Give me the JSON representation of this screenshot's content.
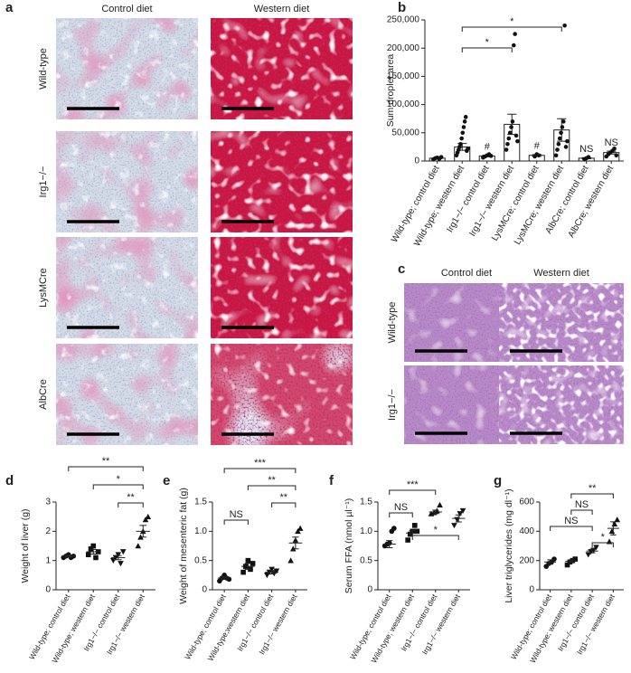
{
  "panel_a": {
    "label": "a",
    "columns": [
      "Control diet",
      "Western diet"
    ],
    "rows": [
      "Wild-type",
      "Irg1−/−",
      "LysMCre",
      "AlbCre"
    ]
  },
  "panel_c": {
    "label": "c",
    "columns": [
      "Control diet",
      "Western diet"
    ],
    "rows": [
      "Wild-type",
      "Irg1−/−"
    ]
  },
  "chart_data": [
    {
      "type": "bar",
      "label": "b",
      "y_label": "Sum droplet area",
      "categories": [
        "Wild-type; control diet",
        "Wild-type; western diet",
        "Irg1−/− control diet",
        "Irg1−/− western diet",
        "LysMCre; control diet",
        "LysMCre; western diet",
        "AlbCre; control diet",
        "AlbCre; western diet"
      ],
      "values": [
        5000,
        25000,
        9000,
        65000,
        10000,
        55000,
        5000,
        15000
      ],
      "errors": [
        1000,
        6000,
        1500,
        18000,
        1500,
        20000,
        1000,
        2500
      ],
      "points": [
        [
          3000,
          5000,
          6000,
          4000,
          7000
        ],
        [
          10000,
          15000,
          20000,
          25000,
          30000,
          40000,
          50000,
          60000,
          70000,
          78000,
          18000,
          22000
        ],
        [
          6000,
          8000,
          10000,
          12000,
          9000
        ],
        [
          20000,
          30000,
          40000,
          50000,
          60000,
          70000,
          205000,
          225000,
          45000,
          35000
        ],
        [
          8000,
          12000,
          10000
        ],
        [
          10000,
          20000,
          30000,
          40000,
          50000,
          60000,
          70000,
          240000,
          25000,
          35000
        ],
        [
          3000,
          5000,
          7000
        ],
        [
          8000,
          12000,
          15000,
          18000,
          22000,
          10000
        ]
      ],
      "color": "#ffffff",
      "ylim": [
        0,
        250000
      ],
      "yticks": [
        0,
        {
          "value": 50000,
          "label": "50,000"
        },
        {
          "value": 100000,
          "label": "100,000"
        },
        {
          "value": 150000,
          "label": "150,000"
        },
        {
          "value": 200000,
          "label": "200,000"
        },
        {
          "value": 250000,
          "label": "250,000"
        }
      ],
      "brackets": [
        {
          "from": 1,
          "to": 3,
          "label": "*"
        },
        {
          "from": 1,
          "to": 5,
          "label": "*"
        }
      ],
      "annotations": [
        {
          "category": 2,
          "label": "#"
        },
        {
          "category": 4,
          "label": "#"
        },
        {
          "category": 6,
          "label": "NS"
        },
        {
          "category": 7,
          "label": "NS"
        }
      ]
    },
    {
      "type": "dotplot",
      "label": "d",
      "y_label": "Weight of liver (g)",
      "categories": [
        "Wild-type; control diet",
        "Wild-type; western diet",
        "Irg1−/− control diet",
        "Irg1−/− western diet"
      ],
      "values": [
        1.15,
        1.3,
        1.1,
        2.0
      ],
      "errors": [
        0.03,
        0.08,
        0.07,
        0.2
      ],
      "points": [
        [
          1.1,
          1.15,
          1.2,
          1.1,
          1.15
        ],
        [
          1.2,
          1.4,
          1.5,
          1.1,
          1.3
        ],
        [
          1.0,
          1.1,
          1.2,
          0.9,
          1.3
        ],
        [
          1.5,
          1.8,
          2.0,
          2.4,
          2.5
        ]
      ],
      "markers": [
        "circle",
        "square",
        "triangle-down",
        "triangle"
      ],
      "ylim": [
        0,
        3
      ],
      "yticks": [
        0,
        1,
        2,
        3
      ],
      "brackets": [
        {
          "from": 2,
          "to": 3,
          "label": "**"
        },
        {
          "from": 1,
          "to": 3,
          "label": "*"
        },
        {
          "from": 0,
          "to": 3,
          "label": "**"
        }
      ]
    },
    {
      "type": "dotplot",
      "label": "e",
      "y_label": "Weight of mesenteric fat (g)",
      "categories": [
        "Wild-type; control diet",
        "Wild-type;western diet",
        "Irg1−/− control diet",
        "Irg1−/− western diet"
      ],
      "values": [
        0.2,
        0.4,
        0.3,
        0.8
      ],
      "errors": [
        0.02,
        0.05,
        0.03,
        0.1
      ],
      "points": [
        [
          0.15,
          0.2,
          0.25,
          0.2,
          0.18
        ],
        [
          0.3,
          0.4,
          0.5,
          0.35,
          0.45
        ],
        [
          0.25,
          0.3,
          0.35,
          0.28,
          0.32
        ],
        [
          0.5,
          0.7,
          0.85,
          1.0,
          1.05
        ]
      ],
      "markers": [
        "circle",
        "square",
        "triangle-down",
        "triangle"
      ],
      "ylim": [
        0,
        1.5
      ],
      "yticks": [
        0,
        0.5,
        {
          "value": 1,
          "label": "1.0"
        },
        1.5
      ],
      "brackets": [
        {
          "from": 0,
          "to": 1,
          "label": "NS"
        },
        {
          "from": 2,
          "to": 3,
          "label": "**"
        },
        {
          "from": 1,
          "to": 3,
          "label": "**"
        },
        {
          "from": 0,
          "to": 3,
          "label": "***"
        }
      ]
    },
    {
      "type": "dotplot",
      "label": "f",
      "y_label": "Serum FFA (nmol µl⁻¹)",
      "categories": [
        "Wild-type; control diet",
        "Wild-type; western diet",
        "Irg1−/− control diet",
        "Irg1−/− western diet"
      ],
      "values": [
        0.78,
        0.97,
        1.33,
        1.22
      ],
      "errors": [
        0.06,
        0.04,
        0.03,
        0.06
      ],
      "points": [
        [
          0.75,
          0.78,
          0.8,
          1.0,
          1.05
        ],
        [
          0.85,
          0.95,
          1.0,
          1.1,
          1.0
        ],
        [
          1.3,
          1.32,
          1.35,
          1.45
        ],
        [
          1.1,
          1.2,
          1.3,
          1.35
        ]
      ],
      "markers": [
        "circle",
        "square",
        "triangle",
        "triangle-down"
      ],
      "ylim": [
        0,
        1.5
      ],
      "yticks": [
        0,
        0.5,
        {
          "value": 1,
          "label": "1.0"
        },
        1.5
      ],
      "brackets": [
        {
          "from": 1,
          "to": 3,
          "label": "*"
        },
        {
          "from": 0,
          "to": 1,
          "label": "NS"
        },
        {
          "from": 0,
          "to": 2,
          "label": "***"
        }
      ]
    },
    {
      "type": "dotplot",
      "label": "g",
      "y_label": "Liver triglycerides (mg dl⁻¹)",
      "categories": [
        "Wild-type; control diet",
        "Wild-type; western diet",
        "Irg1−/− control diet",
        "Irg1−/− western diet"
      ],
      "values": [
        190,
        195,
        265,
        420
      ],
      "errors": [
        15,
        10,
        12,
        45
      ],
      "points": [
        [
          160,
          180,
          190,
          210
        ],
        [
          170,
          190,
          200,
          210
        ],
        [
          240,
          260,
          270,
          290
        ],
        [
          330,
          400,
          450,
          480
        ]
      ],
      "markers": [
        "circle",
        "square",
        "triangle-down",
        "triangle"
      ],
      "ylim": [
        0,
        600
      ],
      "yticks": [
        0,
        200,
        400,
        600
      ],
      "brackets": [
        {
          "from": 2,
          "to": 3,
          "label": "*"
        },
        {
          "from": 0,
          "to": 2,
          "label": "NS"
        },
        {
          "from": 1,
          "to": 2,
          "label": "NS"
        },
        {
          "from": 1,
          "to": 3,
          "label": "**"
        }
      ]
    }
  ]
}
